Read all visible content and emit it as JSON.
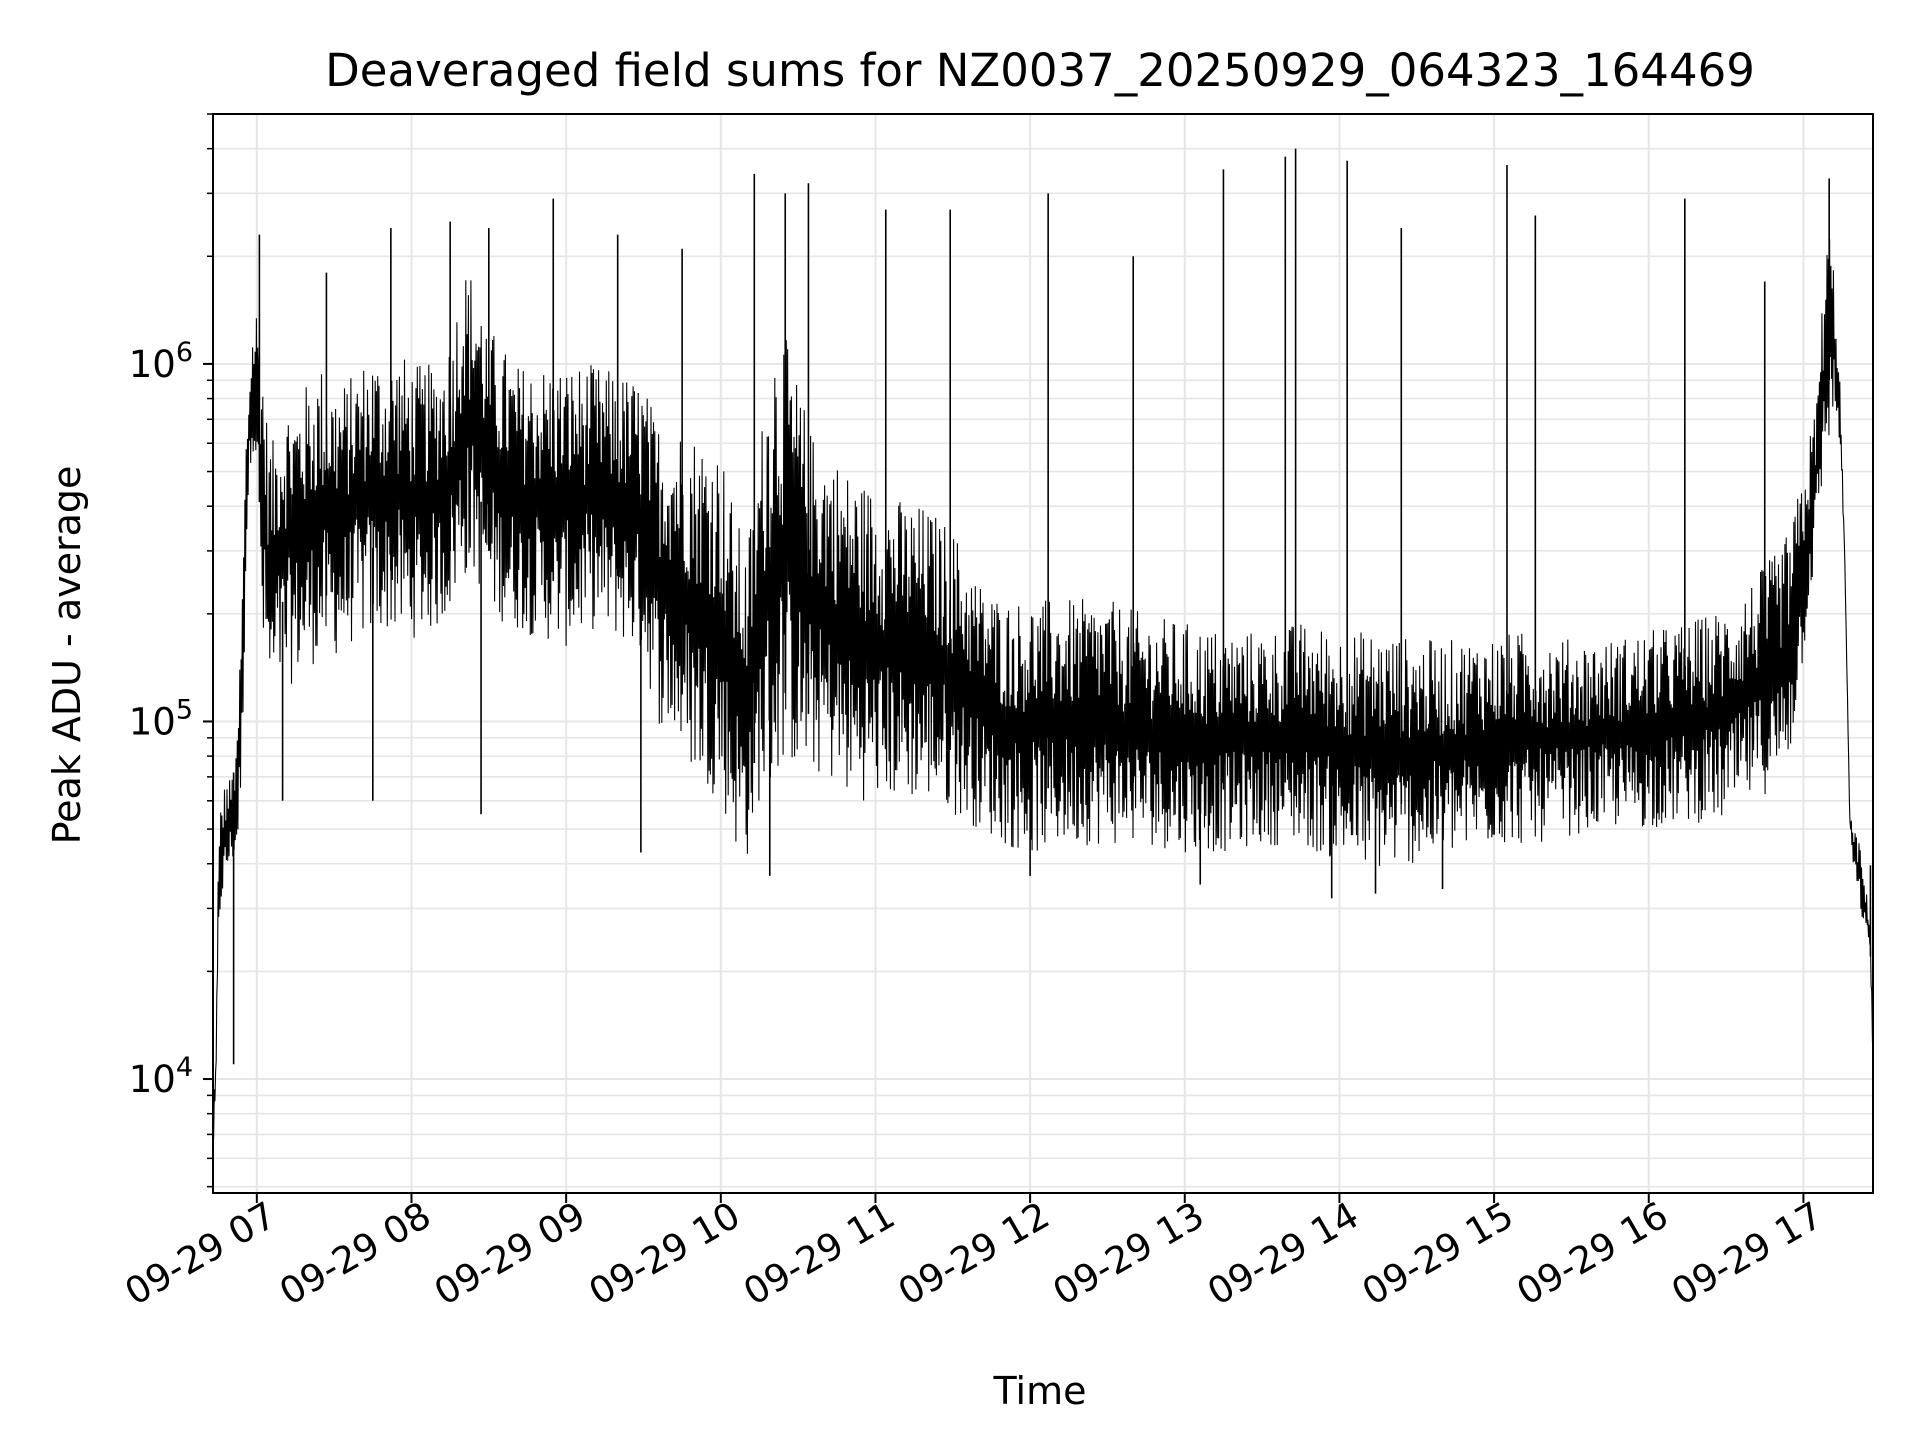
{
  "chart_data": {
    "type": "line",
    "title": "Deaveraged field sums for NZ0037_20250929_064323_164469",
    "xlabel": "Time",
    "ylabel": "Peak ADU - average",
    "yscale": "log",
    "grid": true,
    "grid_includes_minor": true,
    "line_color": "#000000",
    "grid_color": "#e6e6e6",
    "xlim": [
      "2025-09-29 06:43",
      "2025-09-29 17:27"
    ],
    "ylim": [
      4800,
      5000000
    ],
    "x_ticks": [
      {
        "value": "2025-09-29 07:00",
        "label": "09-29 07"
      },
      {
        "value": "2025-09-29 08:00",
        "label": "09-29 08"
      },
      {
        "value": "2025-09-29 09:00",
        "label": "09-29 09"
      },
      {
        "value": "2025-09-29 10:00",
        "label": "09-29 10"
      },
      {
        "value": "2025-09-29 11:00",
        "label": "09-29 11"
      },
      {
        "value": "2025-09-29 12:00",
        "label": "09-29 12"
      },
      {
        "value": "2025-09-29 13:00",
        "label": "09-29 13"
      },
      {
        "value": "2025-09-29 14:00",
        "label": "09-29 14"
      },
      {
        "value": "2025-09-29 15:00",
        "label": "09-29 15"
      },
      {
        "value": "2025-09-29 16:00",
        "label": "09-29 16"
      },
      {
        "value": "2025-09-29 17:00",
        "label": "09-29 17"
      }
    ],
    "y_ticks": [
      {
        "value": 10000,
        "base": "10",
        "exp": "4"
      },
      {
        "value": 100000,
        "base": "10",
        "exp": "5"
      },
      {
        "value": 1000000,
        "base": "10",
        "exp": "6"
      }
    ],
    "series": [
      {
        "x": [
          "2025-09-29 06:43",
          "2025-09-29 06:44",
          "2025-09-29 06:45",
          "2025-09-29 06:46",
          "2025-09-29 06:48",
          "2025-09-29 06:50",
          "2025-09-29 06:52",
          "2025-09-29 06:54",
          "2025-09-29 06:56",
          "2025-09-29 06:58",
          "2025-09-29 07:00",
          "2025-09-29 07:02",
          "2025-09-29 07:04",
          "2025-09-29 07:06",
          "2025-09-29 07:08",
          "2025-09-29 07:10",
          "2025-09-29 07:15",
          "2025-09-29 07:20",
          "2025-09-29 07:25",
          "2025-09-29 07:30",
          "2025-09-29 07:35",
          "2025-09-29 07:40",
          "2025-09-29 07:45",
          "2025-09-29 07:50",
          "2025-09-29 07:55",
          "2025-09-29 08:00",
          "2025-09-29 08:10",
          "2025-09-29 08:15",
          "2025-09-29 08:20",
          "2025-09-29 08:25",
          "2025-09-29 08:30",
          "2025-09-29 08:40",
          "2025-09-29 08:50",
          "2025-09-29 09:00",
          "2025-09-29 09:10",
          "2025-09-29 09:20",
          "2025-09-29 09:30",
          "2025-09-29 09:35",
          "2025-09-29 09:40",
          "2025-09-29 09:50",
          "2025-09-29 10:00",
          "2025-09-29 10:05",
          "2025-09-29 10:10",
          "2025-09-29 10:15",
          "2025-09-29 10:20",
          "2025-09-29 10:25",
          "2025-09-29 10:30",
          "2025-09-29 10:35",
          "2025-09-29 10:40",
          "2025-09-29 10:45",
          "2025-09-29 10:50",
          "2025-09-29 11:00",
          "2025-09-29 11:10",
          "2025-09-29 11:20",
          "2025-09-29 11:30",
          "2025-09-29 11:40",
          "2025-09-29 11:50",
          "2025-09-29 12:00",
          "2025-09-29 12:15",
          "2025-09-29 12:30",
          "2025-09-29 12:45",
          "2025-09-29 13:00",
          "2025-09-29 13:15",
          "2025-09-29 13:30",
          "2025-09-29 13:45",
          "2025-09-29 14:00",
          "2025-09-29 14:15",
          "2025-09-29 14:30",
          "2025-09-29 14:45",
          "2025-09-29 15:00",
          "2025-09-29 15:15",
          "2025-09-29 15:30",
          "2025-09-29 15:45",
          "2025-09-29 16:00",
          "2025-09-29 16:15",
          "2025-09-29 16:30",
          "2025-09-29 16:40",
          "2025-09-29 16:50",
          "2025-09-29 16:55",
          "2025-09-29 17:00",
          "2025-09-29 17:05",
          "2025-09-29 17:08",
          "2025-09-29 17:10",
          "2025-09-29 17:12",
          "2025-09-29 17:14",
          "2025-09-29 17:16",
          "2025-09-29 17:18",
          "2025-09-29 17:20",
          "2025-09-29 17:22",
          "2025-09-29 17:24",
          "2025-09-29 17:26",
          "2025-09-29 17:27"
        ],
        "lo": [
          6000,
          8000,
          20000,
          30000,
          35000,
          40000,
          40000,
          60000,
          300000,
          600000,
          500000,
          150000,
          120000,
          100000,
          120000,
          120000,
          130000,
          140000,
          150000,
          150000,
          160000,
          170000,
          170000,
          180000,
          170000,
          170000,
          180000,
          200000,
          250000,
          250000,
          200000,
          180000,
          170000,
          160000,
          180000,
          170000,
          150000,
          100000,
          90000,
          70000,
          60000,
          45000,
          40000,
          60000,
          60000,
          80000,
          70000,
          70000,
          70000,
          65000,
          60000,
          60000,
          60000,
          60000,
          55000,
          50000,
          45000,
          42000,
          45000,
          45000,
          45000,
          43000,
          43000,
          45000,
          45000,
          40000,
          38000,
          40000,
          42000,
          45000,
          45000,
          48000,
          50000,
          50000,
          52000,
          52000,
          60000,
          65000,
          80000,
          150000,
          300000,
          500000,
          600000,
          700000,
          600000,
          300000,
          50000,
          35000,
          30000,
          25000,
          22000,
          10000
        ],
        "hi": [
          9000,
          11000,
          40000,
          60000,
          70000,
          70000,
          80000,
          200000,
          700000,
          1200000,
          1500000,
          1200000,
          700000,
          600000,
          700000,
          800000,
          800000,
          900000,
          1000000,
          900000,
          900000,
          1000000,
          1100000,
          1000000,
          1100000,
          1000000,
          1000000,
          1200000,
          1900000,
          1800000,
          1300000,
          1000000,
          1000000,
          1000000,
          1000000,
          950000,
          900000,
          700000,
          700000,
          650000,
          600000,
          400000,
          300000,
          600000,
          1300000,
          1200000,
          900000,
          650000,
          600000,
          550000,
          500000,
          450000,
          420000,
          400000,
          350000,
          250000,
          220000,
          220000,
          220000,
          220000,
          200000,
          190000,
          180000,
          180000,
          190000,
          180000,
          180000,
          170000,
          170000,
          175000,
          180000,
          170000,
          170000,
          180000,
          190000,
          210000,
          250000,
          300000,
          350000,
          500000,
          800000,
          1800000,
          2600000,
          1800000,
          1000000,
          300000,
          55000,
          50000,
          45000,
          35000,
          28000,
          12000
        ],
        "spikes": [
          {
            "x": "2025-09-29 07:01",
            "y": 2300000
          },
          {
            "x": "2025-09-29 07:27",
            "y": 1800000
          },
          {
            "x": "2025-09-29 07:52",
            "y": 2400000
          },
          {
            "x": "2025-09-29 08:15",
            "y": 2500000
          },
          {
            "x": "2025-09-29 08:30",
            "y": 2400000
          },
          {
            "x": "2025-09-29 08:55",
            "y": 2900000
          },
          {
            "x": "2025-09-29 09:20",
            "y": 2300000
          },
          {
            "x": "2025-09-29 09:45",
            "y": 2100000
          },
          {
            "x": "2025-09-29 10:13",
            "y": 3400000
          },
          {
            "x": "2025-09-29 10:25",
            "y": 3000000
          },
          {
            "x": "2025-09-29 10:34",
            "y": 3200000
          },
          {
            "x": "2025-09-29 11:04",
            "y": 2700000
          },
          {
            "x": "2025-09-29 11:29",
            "y": 2700000
          },
          {
            "x": "2025-09-29 12:07",
            "y": 3000000
          },
          {
            "x": "2025-09-29 12:40",
            "y": 2000000
          },
          {
            "x": "2025-09-29 13:15",
            "y": 3500000
          },
          {
            "x": "2025-09-29 13:39",
            "y": 3800000
          },
          {
            "x": "2025-09-29 13:43",
            "y": 4000000
          },
          {
            "x": "2025-09-29 14:03",
            "y": 3700000
          },
          {
            "x": "2025-09-29 14:24",
            "y": 2400000
          },
          {
            "x": "2025-09-29 15:05",
            "y": 3600000
          },
          {
            "x": "2025-09-29 15:16",
            "y": 2600000
          },
          {
            "x": "2025-09-29 16:14",
            "y": 2900000
          },
          {
            "x": "2025-09-29 16:45",
            "y": 1700000
          },
          {
            "x": "2025-09-29 17:10",
            "y": 3300000
          }
        ],
        "dips": [
          {
            "x": "2025-09-29 06:51",
            "y": 11000
          },
          {
            "x": "2025-09-29 07:10",
            "y": 60000
          },
          {
            "x": "2025-09-29 07:45",
            "y": 60000
          },
          {
            "x": "2025-09-29 08:27",
            "y": 55000
          },
          {
            "x": "2025-09-29 09:29",
            "y": 43000
          },
          {
            "x": "2025-09-29 10:19",
            "y": 37000
          },
          {
            "x": "2025-09-29 12:00",
            "y": 37000
          },
          {
            "x": "2025-09-29 13:06",
            "y": 35000
          },
          {
            "x": "2025-09-29 13:57",
            "y": 32000
          },
          {
            "x": "2025-09-29 14:14",
            "y": 33000
          },
          {
            "x": "2025-09-29 14:40",
            "y": 34000
          },
          {
            "x": "2025-09-29 17:26",
            "y": 22000
          }
        ]
      }
    ]
  }
}
